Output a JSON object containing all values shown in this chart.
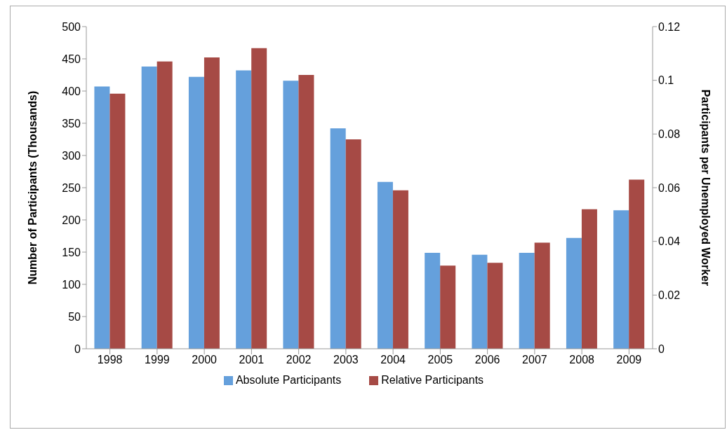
{
  "chart_data": {
    "type": "bar",
    "categories": [
      "1998",
      "1999",
      "2000",
      "2001",
      "2002",
      "2003",
      "2004",
      "2005",
      "2006",
      "2007",
      "2008",
      "2009"
    ],
    "series": [
      {
        "name": "Absolute Participants",
        "color": "#65a0dc",
        "values": [
          407,
          438,
          422,
          432,
          416,
          342,
          259,
          149,
          146,
          149,
          172,
          215
        ]
      },
      {
        "name": "Relative Participants",
        "color": "#a64a45",
        "axis": "y2",
        "values": [
          0.095,
          0.107,
          0.1085,
          0.112,
          0.102,
          0.078,
          0.059,
          0.031,
          0.032,
          0.0395,
          0.052,
          0.063
        ]
      }
    ],
    "ylabel": "Number of Participants (Thousands)",
    "y2label": "Participants per Unemployed Worker",
    "ylim": [
      0,
      500
    ],
    "yticks": [
      0,
      50,
      100,
      150,
      200,
      250,
      300,
      350,
      400,
      450,
      500
    ],
    "y2lim": [
      0,
      0.12
    ],
    "y2ticks": [
      0,
      0.02,
      0.04,
      0.06,
      0.08,
      0.1,
      0.12
    ],
    "grid": false,
    "legend": "bottom"
  }
}
